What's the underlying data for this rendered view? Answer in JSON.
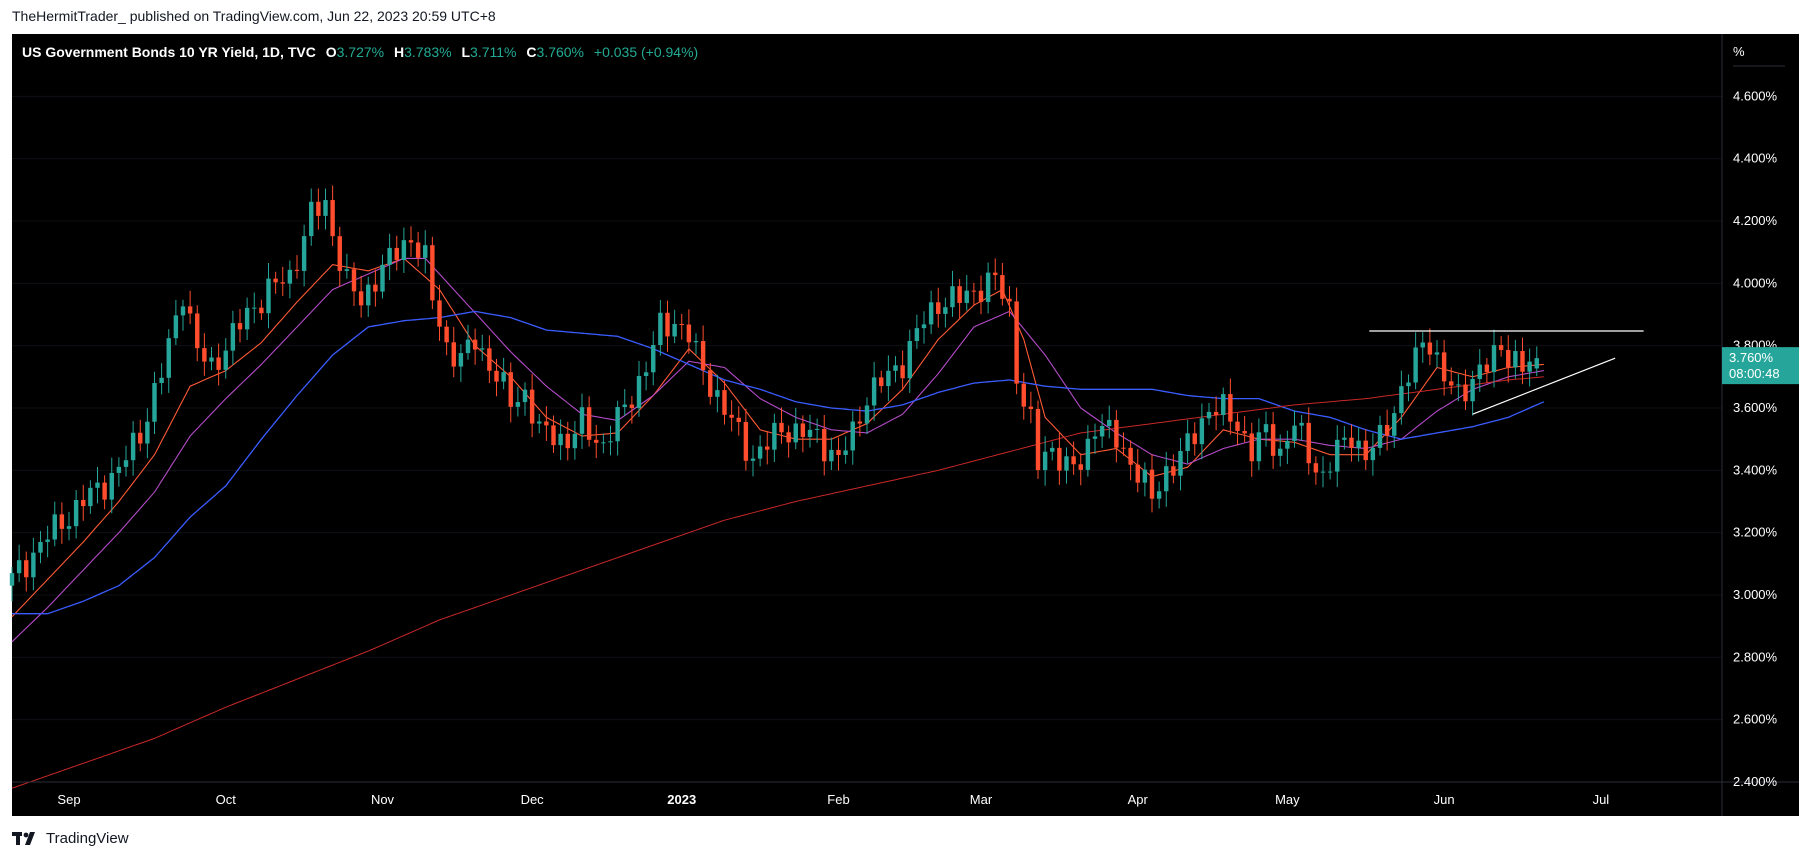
{
  "header": {
    "published_line": "TheHermitTrader_ published on TradingView.com, Jun 22, 2023 20:59 UTC+8"
  },
  "symbol_bar": {
    "title": "US Government Bonds 10 YR Yield, 1D, TVC",
    "o_label": "O",
    "o_value": "3.727%",
    "h_label": "H",
    "h_value": "3.783%",
    "l_label": "L",
    "l_value": "3.711%",
    "c_label": "C",
    "c_value": "3.760%",
    "change": "+0.035 (+0.94%)"
  },
  "price_axis": {
    "unit": "%",
    "last_price": "3.760%",
    "countdown": "08:00:48"
  },
  "footer": {
    "brand": "TradingView"
  },
  "colors": {
    "background": "#000000",
    "up": "#26a69a",
    "down": "#ff4d2d",
    "ma_fast": "#ff5a36",
    "ma_mid": "#b44bc8",
    "ma_slow": "#3a5cff",
    "ma_long": "#c82828",
    "trendline": "#ffffff",
    "price_label": "#26a69a"
  },
  "chart_data": {
    "type": "candlestick",
    "y_ticks": [
      "4.600%",
      "4.400%",
      "4.200%",
      "4.000%",
      "3.800%",
      "3.600%",
      "3.400%",
      "3.200%",
      "3.000%",
      "2.800%",
      "2.600%",
      "2.400%"
    ],
    "y_tick_values": [
      4.6,
      4.4,
      4.2,
      4.0,
      3.8,
      3.6,
      3.4,
      3.2,
      3.0,
      2.8,
      2.6,
      2.4
    ],
    "ylim": [
      2.4,
      4.8
    ],
    "x_ticks": [
      {
        "label": "Sep",
        "day": 8,
        "bold": false
      },
      {
        "label": "Oct",
        "day": 30,
        "bold": false
      },
      {
        "label": "Nov",
        "day": 52,
        "bold": false
      },
      {
        "label": "Dec",
        "day": 73,
        "bold": false
      },
      {
        "label": "2023",
        "day": 94,
        "bold": true
      },
      {
        "label": "Feb",
        "day": 116,
        "bold": false
      },
      {
        "label": "Mar",
        "day": 136,
        "bold": false
      },
      {
        "label": "Apr",
        "day": 158,
        "bold": false
      },
      {
        "label": "May",
        "day": 179,
        "bold": false
      },
      {
        "label": "Jun",
        "day": 201,
        "bold": false
      },
      {
        "label": "Jul",
        "day": 223,
        "bold": false
      }
    ],
    "x_range": [
      0,
      240
    ],
    "candle_count": 215,
    "close_anchors": [
      [
        0,
        3.05
      ],
      [
        5,
        3.19
      ],
      [
        10,
        3.3
      ],
      [
        15,
        3.4
      ],
      [
        18,
        3.52
      ],
      [
        21,
        3.71
      ],
      [
        24,
        3.98
      ],
      [
        26,
        3.78
      ],
      [
        28,
        3.73
      ],
      [
        30,
        3.8
      ],
      [
        33,
        3.9
      ],
      [
        36,
        3.98
      ],
      [
        39,
        4.02
      ],
      [
        42,
        4.22
      ],
      [
        44,
        4.25
      ],
      [
        46,
        4.08
      ],
      [
        47,
        4.0
      ],
      [
        49,
        3.94
      ],
      [
        51,
        4.02
      ],
      [
        54,
        4.1
      ],
      [
        56,
        4.15
      ],
      [
        58,
        4.07
      ],
      [
        59,
        3.95
      ],
      [
        61,
        3.8
      ],
      [
        63,
        3.75
      ],
      [
        65,
        3.82
      ],
      [
        68,
        3.7
      ],
      [
        70,
        3.62
      ],
      [
        72,
        3.65
      ],
      [
        74,
        3.52
      ],
      [
        76,
        3.52
      ],
      [
        78,
        3.49
      ],
      [
        80,
        3.55
      ],
      [
        83,
        3.48
      ],
      [
        86,
        3.6
      ],
      [
        89,
        3.73
      ],
      [
        91,
        3.86
      ],
      [
        93,
        3.88
      ],
      [
        95,
        3.83
      ],
      [
        96,
        3.77
      ],
      [
        98,
        3.68
      ],
      [
        100,
        3.59
      ],
      [
        102,
        3.52
      ],
      [
        104,
        3.44
      ],
      [
        106,
        3.48
      ],
      [
        108,
        3.54
      ],
      [
        110,
        3.52
      ],
      [
        113,
        3.51
      ],
      [
        116,
        3.43
      ],
      [
        118,
        3.52
      ],
      [
        120,
        3.64
      ],
      [
        122,
        3.68
      ],
      [
        125,
        3.75
      ],
      [
        128,
        3.88
      ],
      [
        130,
        3.94
      ],
      [
        133,
        3.95
      ],
      [
        136,
        3.99
      ],
      [
        138,
        4.01
      ],
      [
        140,
        3.92
      ],
      [
        141,
        3.72
      ],
      [
        142,
        3.61
      ],
      [
        143,
        3.55
      ],
      [
        144,
        3.42
      ],
      [
        146,
        3.48
      ],
      [
        148,
        3.4
      ],
      [
        150,
        3.42
      ],
      [
        152,
        3.55
      ],
      [
        155,
        3.5
      ],
      [
        157,
        3.43
      ],
      [
        159,
        3.35
      ],
      [
        160,
        3.31
      ],
      [
        162,
        3.4
      ],
      [
        164,
        3.44
      ],
      [
        166,
        3.52
      ],
      [
        168,
        3.6
      ],
      [
        170,
        3.59
      ],
      [
        172,
        3.55
      ],
      [
        174,
        3.46
      ],
      [
        176,
        3.52
      ],
      [
        178,
        3.46
      ],
      [
        180,
        3.55
      ],
      [
        182,
        3.45
      ],
      [
        184,
        3.38
      ],
      [
        186,
        3.46
      ],
      [
        188,
        3.52
      ],
      [
        190,
        3.44
      ],
      [
        192,
        3.5
      ],
      [
        194,
        3.6
      ],
      [
        196,
        3.7
      ],
      [
        198,
        3.81
      ],
      [
        199,
        3.82
      ],
      [
        201,
        3.69
      ],
      [
        203,
        3.64
      ],
      [
        205,
        3.7
      ],
      [
        207,
        3.73
      ],
      [
        209,
        3.8
      ],
      [
        211,
        3.75
      ],
      [
        212,
        3.72
      ],
      [
        214,
        3.76
      ]
    ],
    "moving_averages": [
      {
        "color": "#ff5a36",
        "width": 1.1,
        "points": [
          [
            0,
            2.93
          ],
          [
            5,
            3.05
          ],
          [
            10,
            3.17
          ],
          [
            15,
            3.3
          ],
          [
            20,
            3.45
          ],
          [
            25,
            3.67
          ],
          [
            30,
            3.72
          ],
          [
            35,
            3.81
          ],
          [
            40,
            3.94
          ],
          [
            45,
            4.06
          ],
          [
            50,
            4.04
          ],
          [
            55,
            4.08
          ],
          [
            60,
            3.98
          ],
          [
            65,
            3.8
          ],
          [
            70,
            3.7
          ],
          [
            75,
            3.57
          ],
          [
            80,
            3.51
          ],
          [
            85,
            3.52
          ],
          [
            90,
            3.64
          ],
          [
            95,
            3.79
          ],
          [
            100,
            3.68
          ],
          [
            105,
            3.53
          ],
          [
            110,
            3.5
          ],
          [
            115,
            3.5
          ],
          [
            120,
            3.55
          ],
          [
            125,
            3.66
          ],
          [
            130,
            3.82
          ],
          [
            135,
            3.93
          ],
          [
            139,
            3.98
          ],
          [
            142,
            3.82
          ],
          [
            145,
            3.57
          ],
          [
            150,
            3.45
          ],
          [
            155,
            3.47
          ],
          [
            160,
            3.38
          ],
          [
            165,
            3.41
          ],
          [
            170,
            3.53
          ],
          [
            175,
            3.5
          ],
          [
            180,
            3.49
          ],
          [
            185,
            3.45
          ],
          [
            190,
            3.45
          ],
          [
            195,
            3.57
          ],
          [
            200,
            3.73
          ],
          [
            205,
            3.7
          ],
          [
            210,
            3.73
          ],
          [
            215,
            3.74
          ]
        ]
      },
      {
        "color": "#b44bc8",
        "width": 1.1,
        "points": [
          [
            0,
            2.85
          ],
          [
            5,
            2.96
          ],
          [
            10,
            3.08
          ],
          [
            15,
            3.2
          ],
          [
            20,
            3.33
          ],
          [
            25,
            3.51
          ],
          [
            30,
            3.63
          ],
          [
            35,
            3.74
          ],
          [
            40,
            3.86
          ],
          [
            45,
            3.98
          ],
          [
            50,
            4.03
          ],
          [
            55,
            4.08
          ],
          [
            58,
            4.08
          ],
          [
            62,
            3.98
          ],
          [
            66,
            3.88
          ],
          [
            70,
            3.78
          ],
          [
            75,
            3.67
          ],
          [
            80,
            3.58
          ],
          [
            85,
            3.56
          ],
          [
            90,
            3.64
          ],
          [
            95,
            3.75
          ],
          [
            100,
            3.73
          ],
          [
            105,
            3.63
          ],
          [
            110,
            3.57
          ],
          [
            115,
            3.53
          ],
          [
            120,
            3.52
          ],
          [
            125,
            3.58
          ],
          [
            130,
            3.71
          ],
          [
            135,
            3.86
          ],
          [
            140,
            3.91
          ],
          [
            145,
            3.77
          ],
          [
            150,
            3.6
          ],
          [
            155,
            3.52
          ],
          [
            160,
            3.45
          ],
          [
            165,
            3.42
          ],
          [
            170,
            3.47
          ],
          [
            175,
            3.5
          ],
          [
            180,
            3.5
          ],
          [
            185,
            3.48
          ],
          [
            190,
            3.47
          ],
          [
            195,
            3.5
          ],
          [
            200,
            3.59
          ],
          [
            205,
            3.66
          ],
          [
            210,
            3.7
          ],
          [
            215,
            3.72
          ]
        ]
      },
      {
        "color": "#3a5cff",
        "width": 1.3,
        "points": [
          [
            0,
            2.94
          ],
          [
            5,
            2.94
          ],
          [
            10,
            2.98
          ],
          [
            15,
            3.03
          ],
          [
            20,
            3.12
          ],
          [
            25,
            3.25
          ],
          [
            30,
            3.35
          ],
          [
            35,
            3.5
          ],
          [
            40,
            3.64
          ],
          [
            45,
            3.77
          ],
          [
            50,
            3.86
          ],
          [
            55,
            3.88
          ],
          [
            60,
            3.89
          ],
          [
            65,
            3.91
          ],
          [
            70,
            3.89
          ],
          [
            75,
            3.85
          ],
          [
            80,
            3.84
          ],
          [
            85,
            3.83
          ],
          [
            90,
            3.79
          ],
          [
            95,
            3.74
          ],
          [
            100,
            3.69
          ],
          [
            105,
            3.66
          ],
          [
            110,
            3.62
          ],
          [
            115,
            3.6
          ],
          [
            120,
            3.59
          ],
          [
            125,
            3.61
          ],
          [
            130,
            3.65
          ],
          [
            135,
            3.68
          ],
          [
            140,
            3.69
          ],
          [
            145,
            3.67
          ],
          [
            150,
            3.66
          ],
          [
            155,
            3.66
          ],
          [
            160,
            3.66
          ],
          [
            165,
            3.64
          ],
          [
            170,
            3.63
          ],
          [
            175,
            3.63
          ],
          [
            180,
            3.59
          ],
          [
            185,
            3.57
          ],
          [
            190,
            3.53
          ],
          [
            195,
            3.5
          ],
          [
            200,
            3.52
          ],
          [
            205,
            3.54
          ],
          [
            210,
            3.57
          ],
          [
            215,
            3.62
          ]
        ]
      },
      {
        "color": "#c82828",
        "width": 1.0,
        "points": [
          [
            0,
            2.38
          ],
          [
            10,
            2.46
          ],
          [
            20,
            2.54
          ],
          [
            30,
            2.64
          ],
          [
            40,
            2.73
          ],
          [
            50,
            2.82
          ],
          [
            60,
            2.92
          ],
          [
            70,
            3.0
          ],
          [
            80,
            3.08
          ],
          [
            90,
            3.16
          ],
          [
            100,
            3.24
          ],
          [
            110,
            3.3
          ],
          [
            120,
            3.35
          ],
          [
            130,
            3.4
          ],
          [
            140,
            3.46
          ],
          [
            150,
            3.52
          ],
          [
            160,
            3.55
          ],
          [
            170,
            3.58
          ],
          [
            180,
            3.61
          ],
          [
            190,
            3.63
          ],
          [
            200,
            3.66
          ],
          [
            210,
            3.69
          ],
          [
            215,
            3.7
          ]
        ]
      }
    ],
    "trendlines": [
      {
        "from": [
          190.5,
          3.847
        ],
        "to": [
          229,
          3.847
        ]
      },
      {
        "from": [
          205,
          3.58
        ],
        "to": [
          225,
          3.76
        ]
      }
    ]
  }
}
